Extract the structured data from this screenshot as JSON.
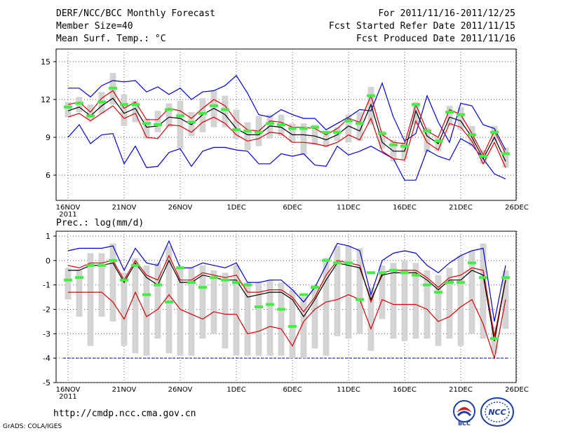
{
  "header": {
    "title": "DERF/NCC/BCC Monthly Forecast",
    "member": "Member Size=40",
    "variable": "Mean Surf. Temp.: °C",
    "period": "For 2011/11/16-2011/12/25",
    "started": "Fcst Started Refer Date 2011/11/15",
    "produced": "Fcst Produced Date 2011/11/16"
  },
  "footer": {
    "url": "http://cmdp.ncc.cma.gov.cn",
    "grads": "GrADS: COLA/IGES",
    "logo_left": "BCC",
    "logo_right": "NCC"
  },
  "colors": {
    "envelope": "#0000dd",
    "range": "#dd0000",
    "mean": "#000000",
    "box": "#d4d4d4",
    "obs": "#44ee44",
    "grid": "#555555"
  },
  "chart_data": [
    {
      "type": "box-plume",
      "title": "Mean Surf. Temp.: °C",
      "xlabel": "",
      "ylabel": "",
      "x_ticks": [
        "16NOV",
        "21NOV",
        "26NOV",
        "1DEC",
        "6DEC",
        "11DEC",
        "16DEC",
        "21DEC",
        "26DEC"
      ],
      "x_year": "2011",
      "y_ticks": [
        "6",
        "9",
        "12",
        "15"
      ],
      "ylim": [
        4,
        16
      ],
      "ngrid": 40,
      "series": [
        {
          "name": "ensemble-max",
          "color": "#0000dd",
          "values": [
            12.9,
            12.9,
            12.2,
            13.1,
            13.5,
            13.4,
            13.5,
            12.6,
            13.0,
            12.4,
            12.9,
            12.0,
            12.6,
            12.7,
            13.1,
            13.9,
            12.5,
            10.8,
            10.6,
            11.2,
            10.8,
            10.5,
            10.5,
            9.6,
            10.1,
            10.6,
            11.2,
            11.1,
            13.3,
            10.6,
            8.7,
            9.3,
            12.3,
            10.2,
            8.6,
            11.7,
            11.5,
            10.0,
            9.7,
            8.0
          ]
        },
        {
          "name": "ensemble-min",
          "color": "#0000dd",
          "values": [
            9.0,
            10.0,
            8.5,
            9.2,
            9.3,
            6.9,
            8.3,
            6.6,
            6.7,
            7.8,
            8.1,
            6.7,
            7.9,
            8.2,
            8.2,
            8.0,
            7.9,
            6.9,
            6.9,
            7.7,
            7.5,
            7.7,
            6.8,
            6.7,
            8.3,
            7.6,
            7.9,
            8.3,
            7.8,
            7.3,
            5.6,
            5.6,
            8.0,
            7.5,
            7.2,
            8.9,
            8.4,
            7.3,
            6.1,
            5.7
          ]
        },
        {
          "name": "range-upper",
          "color": "#dd0000",
          "values": [
            11.6,
            11.8,
            11.0,
            12.1,
            12.7,
            11.3,
            11.8,
            10.4,
            10.4,
            11.3,
            11.1,
            10.5,
            11.3,
            12.0,
            11.5,
            10.3,
            9.6,
            9.5,
            10.3,
            10.2,
            9.8,
            9.8,
            9.7,
            9.2,
            9.7,
            10.5,
            10.2,
            12.3,
            9.2,
            8.6,
            8.5,
            11.6,
            9.5,
            9.0,
            11.2,
            10.8,
            9.3,
            7.6,
            9.5,
            7.7
          ]
        },
        {
          "name": "range-lower",
          "color": "#dd0000",
          "values": [
            10.6,
            10.9,
            10.3,
            10.9,
            11.5,
            10.5,
            10.9,
            9.0,
            8.9,
            10.0,
            9.9,
            9.4,
            10.2,
            10.6,
            10.1,
            9.2,
            8.7,
            8.9,
            9.4,
            9.3,
            8.6,
            8.6,
            8.5,
            8.3,
            8.6,
            9.2,
            8.8,
            10.5,
            7.9,
            7.3,
            7.2,
            10.3,
            8.6,
            8.0,
            10.1,
            9.8,
            8.7,
            6.9,
            8.6,
            6.6
          ]
        },
        {
          "name": "ensemble-mean",
          "color": "#000000",
          "values": [
            11.1,
            11.4,
            10.7,
            11.5,
            12.1,
            10.9,
            11.3,
            9.8,
            9.9,
            10.6,
            10.5,
            10.0,
            10.8,
            11.3,
            10.8,
            9.7,
            9.2,
            9.2,
            9.9,
            9.8,
            9.2,
            9.2,
            9.1,
            8.8,
            9.2,
            9.9,
            9.5,
            11.6,
            8.6,
            7.9,
            7.9,
            11.1,
            9.1,
            8.5,
            10.6,
            10.3,
            9.0,
            7.3,
            9.0,
            7.1
          ]
        }
      ],
      "boxes": {
        "name": "member-spread",
        "low": [
          10.6,
          11.0,
          10.4,
          10.9,
          11.6,
          9.9,
          10.2,
          8.9,
          9.4,
          9.8,
          8.1,
          9.1,
          9.4,
          9.8,
          9.8,
          8.9,
          8.0,
          8.3,
          8.9,
          9.1,
          8.6,
          7.6,
          8.4,
          8.2,
          8.7,
          8.6,
          8.7,
          10.0,
          8.1,
          7.1,
          7.3,
          10.0,
          7.8,
          7.9,
          9.9,
          9.6,
          8.3,
          6.9,
          8.7,
          6.6
        ],
        "high": [
          11.8,
          12.2,
          11.6,
          12.6,
          14.1,
          12.4,
          11.9,
          10.5,
          11.1,
          11.7,
          11.9,
          11.0,
          12.1,
          12.7,
          12.3,
          11.2,
          10.2,
          10.7,
          10.8,
          10.8,
          10.1,
          10.1,
          10.0,
          9.2,
          9.8,
          10.8,
          11.0,
          13.0,
          9.5,
          8.8,
          8.6,
          11.8,
          9.8,
          9.0,
          11.5,
          11.4,
          9.9,
          8.0,
          9.9,
          8.2
        ]
      },
      "observed": {
        "name": "observation-bar",
        "values": [
          11.4,
          11.7,
          10.7,
          11.8,
          12.9,
          11.6,
          11.6,
          10.1,
          10.0,
          11.2,
          10.7,
          10.2,
          10.9,
          11.5,
          11.2,
          9.6,
          9.5,
          9.4,
          10.1,
          10.0,
          9.7,
          9.7,
          9.8,
          9.4,
          9.4,
          10.3,
          10.1,
          12.3,
          9.3,
          8.4,
          8.3,
          11.6,
          9.5,
          8.7,
          11.0,
          10.8,
          9.2,
          7.5,
          9.4,
          7.7
        ]
      }
    },
    {
      "type": "box-plume",
      "title": "Prec.: log(mm/d)",
      "xlabel": "",
      "ylabel": "",
      "x_ticks": [
        "16NOV",
        "21NOV",
        "26NOV",
        "1DEC",
        "6DEC",
        "11DEC",
        "16DEC",
        "21DEC",
        "26DEC"
      ],
      "x_year": "2011",
      "y_ticks": [
        "-5",
        "-4",
        "-3",
        "-2",
        "-1",
        "0",
        "1"
      ],
      "ylim": [
        -5,
        1.2
      ],
      "floor": -4,
      "series": [
        {
          "name": "ensemble-max",
          "color": "#0000dd",
          "values": [
            0.4,
            0.5,
            0.5,
            0.5,
            0.6,
            -0.4,
            0.5,
            -0.1,
            -0.2,
            0.8,
            -0.3,
            -0.3,
            -0.1,
            -0.2,
            -0.3,
            -0.1,
            -0.9,
            -0.9,
            -0.8,
            -0.8,
            -1.2,
            -1.7,
            -1.1,
            -0.2,
            0.7,
            0.6,
            0.4,
            -1.4,
            0.0,
            0.3,
            0.4,
            0.3,
            -0.2,
            -0.5,
            -0.1,
            0.2,
            0.4,
            0.5,
            -2.5,
            -0.2
          ]
        },
        {
          "name": "range-upper",
          "color": "#dd0000",
          "values": [
            -0.2,
            -0.3,
            -0.1,
            -0.1,
            0.0,
            -0.8,
            0.0,
            -0.6,
            -0.8,
            0.2,
            -0.8,
            -0.8,
            -0.5,
            -0.6,
            -0.7,
            -0.6,
            -1.3,
            -1.3,
            -1.2,
            -1.2,
            -1.5,
            -2.1,
            -1.5,
            -0.6,
            0.0,
            -0.1,
            -0.2,
            -1.7,
            -0.5,
            -0.4,
            -0.4,
            -0.4,
            -0.7,
            -1.1,
            -0.7,
            -0.6,
            -0.3,
            -0.4,
            -3.1,
            -0.8
          ]
        },
        {
          "name": "range-lower",
          "color": "#dd0000",
          "values": [
            -1.3,
            -1.3,
            -1.3,
            -1.3,
            -1.7,
            -2.4,
            -1.3,
            -2.3,
            -2.0,
            -1.4,
            -2.0,
            -2.2,
            -2.4,
            -2.1,
            -2.2,
            -2.2,
            -3.0,
            -2.9,
            -2.7,
            -2.8,
            -3.5,
            -2.5,
            -2.0,
            -1.7,
            -1.6,
            -1.4,
            -1.6,
            -2.8,
            -1.6,
            -1.8,
            -1.8,
            -1.8,
            -2.0,
            -2.5,
            -2.3,
            -1.9,
            -1.6,
            -2.6,
            -4.0,
            -1.6
          ]
        },
        {
          "name": "ensemble-mean",
          "color": "#000000",
          "values": [
            -0.4,
            -0.4,
            -0.2,
            -0.2,
            -0.1,
            -0.9,
            -0.1,
            -0.7,
            -1.0,
            0.0,
            -0.9,
            -0.9,
            -0.6,
            -0.7,
            -0.8,
            -0.8,
            -1.5,
            -1.4,
            -1.3,
            -1.3,
            -1.6,
            -2.3,
            -1.6,
            -0.8,
            -0.1,
            -0.2,
            -0.3,
            -1.6,
            -0.6,
            -0.5,
            -0.5,
            -0.5,
            -0.8,
            -1.2,
            -0.8,
            -0.8,
            -0.4,
            -0.6,
            -3.3,
            -0.8
          ]
        }
      ],
      "boxes": {
        "name": "member-spread",
        "low": [
          -1.6,
          -2.3,
          -3.5,
          -2.3,
          -2.5,
          -3.5,
          -3.8,
          -3.9,
          -3.2,
          -3.8,
          -3.9,
          -3.9,
          -3.2,
          -3.0,
          -3.6,
          -3.9,
          -3.9,
          -3.9,
          -3.9,
          -3.9,
          -4.0,
          -4.0,
          -3.6,
          -3.9,
          -3.1,
          -3.2,
          -3.0,
          -3.7,
          -2.4,
          -3.2,
          -3.3,
          -3.2,
          -3.2,
          -3.5,
          -3.2,
          -3.5,
          -3.0,
          -3.2,
          -3.8,
          -2.8
        ],
        "high": [
          -0.3,
          -0.4,
          0.3,
          0.3,
          0.7,
          -0.5,
          0.1,
          -0.2,
          -0.1,
          0.6,
          -0.3,
          -0.3,
          -0.2,
          -0.4,
          -0.5,
          -0.2,
          -0.9,
          -0.9,
          -0.8,
          -0.9,
          -1.2,
          -1.5,
          -1.0,
          0.1,
          0.6,
          0.6,
          0.5,
          -1.1,
          -0.2,
          -0.1,
          0.0,
          -0.1,
          -0.4,
          -0.6,
          -0.3,
          0.2,
          0.4,
          0.7,
          -2.7,
          -0.4
        ]
      },
      "observed": {
        "name": "observation-bar",
        "values": [
          -0.8,
          -0.7,
          -0.2,
          -0.2,
          0.0,
          -0.8,
          -0.2,
          -1.4,
          -1.0,
          -1.7,
          -0.3,
          -0.9,
          -1.1,
          -0.7,
          -0.8,
          -0.9,
          -1.0,
          -1.9,
          -1.8,
          -2.0,
          -2.7,
          -1.4,
          -1.1,
          0.0,
          -0.1,
          -0.1,
          -1.6,
          -0.5,
          -0.5,
          -0.4,
          -0.5,
          -0.6,
          -1.0,
          -1.3,
          -0.9,
          -0.9,
          -0.1,
          -0.7,
          -3.2,
          -0.7
        ]
      }
    }
  ]
}
